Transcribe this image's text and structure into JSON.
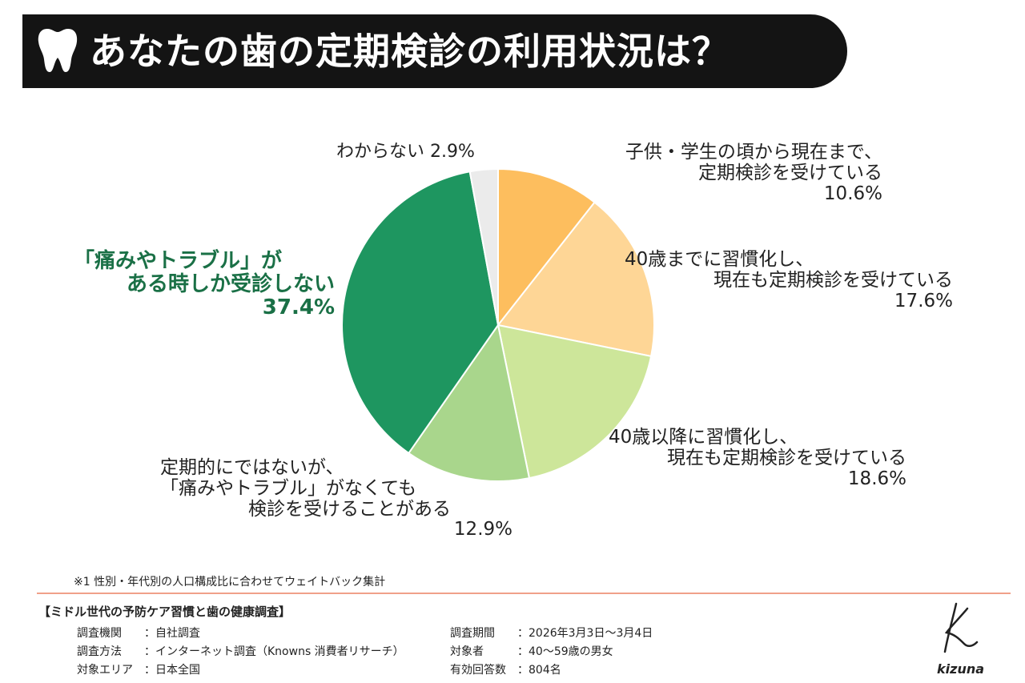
{
  "title": "あなたの歯の定期検診の利用状況は？",
  "chart_data": {
    "type": "pie",
    "title": "あなたの歯の定期検診の利用状況は？",
    "unit": "%",
    "slices": [
      {
        "lines": [
          "子供・学生の頃から現在まで、",
          "定期検診を受けている",
          "10.6%"
        ],
        "value": 10.6,
        "color": "#fdbe5e"
      },
      {
        "lines": [
          "40歳までに習慣化し、",
          "現在も定期検診を受けている",
          "17.6%"
        ],
        "value": 17.6,
        "color": "#fed696"
      },
      {
        "lines": [
          "40歳以降に習慣化し、",
          "現在も定期検診を受けている",
          "18.6%"
        ],
        "value": 18.6,
        "color": "#cde69a"
      },
      {
        "lines": [
          "定期的にではないが、",
          "「痛みやトラブル」がなくても",
          "検診を受けることがある",
          "12.9%"
        ],
        "value": 12.9,
        "color": "#a9d68c"
      },
      {
        "lines": [
          "「痛みやトラブル」が",
          "ある時しか受診しない",
          "37.4%"
        ],
        "value": 37.4,
        "color": "#1e9660"
      },
      {
        "lines": [
          "わからない 2.9%"
        ],
        "value": 2.9,
        "color": "#ebebeb"
      }
    ]
  },
  "note": "※1 性別・年代別の人口構成比に合わせてウェイトバック集計",
  "survey": {
    "title": "【ミドル世代の予防ケア習慣と歯の健康調査】",
    "left": [
      {
        "key": "調査機関",
        "value": "：自社調査"
      },
      {
        "key": "調査方法",
        "value": "：インターネット調査（Knowns 消費者リサーチ）"
      },
      {
        "key": "対象エリア",
        "value": "：日本全国"
      }
    ],
    "right": [
      {
        "key": "調査期間",
        "value": "：2026年3月3日～3月4日"
      },
      {
        "key": "対象者",
        "value": "：40～59歳の男女"
      },
      {
        "key": "有効回答数",
        "value": "：804名"
      }
    ]
  },
  "brand": {
    "logo_text": "kizuna"
  }
}
